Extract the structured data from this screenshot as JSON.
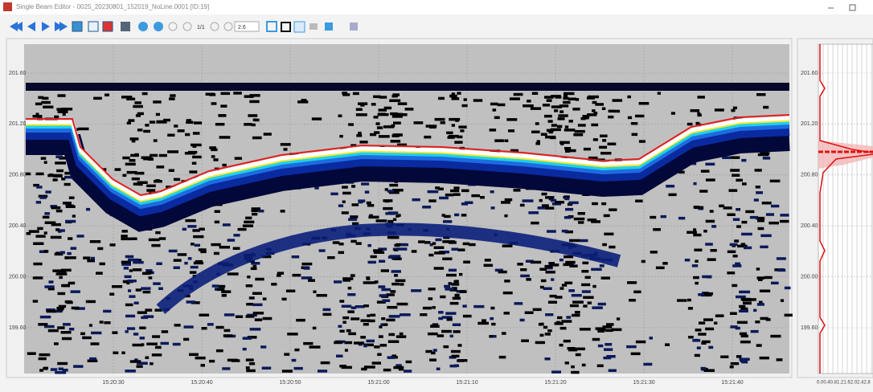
{
  "window": {
    "title": "Single Beam Editor - 0025_20230801_152019_NoLine.0001 [ID:19]"
  },
  "toolbar": {
    "page": "1/1",
    "zoom": "2.6"
  },
  "echogram": {
    "y_labels": [
      "201.60",
      "201.20",
      "200.80",
      "200.40",
      "200.00",
      "199.60"
    ],
    "x_labels": [
      "15:20:30",
      "15:20:40",
      "15:20:50",
      "15:21:00",
      "15:21:10",
      "15:21:20",
      "15:21:30",
      "15:21:40"
    ]
  },
  "profile": {
    "y_labels": [
      "201.60",
      "201.20",
      "200.80",
      "200.40",
      "200.00",
      "199.60"
    ],
    "x_label": "0.00.40.81.21.62.02.42.8"
  }
}
